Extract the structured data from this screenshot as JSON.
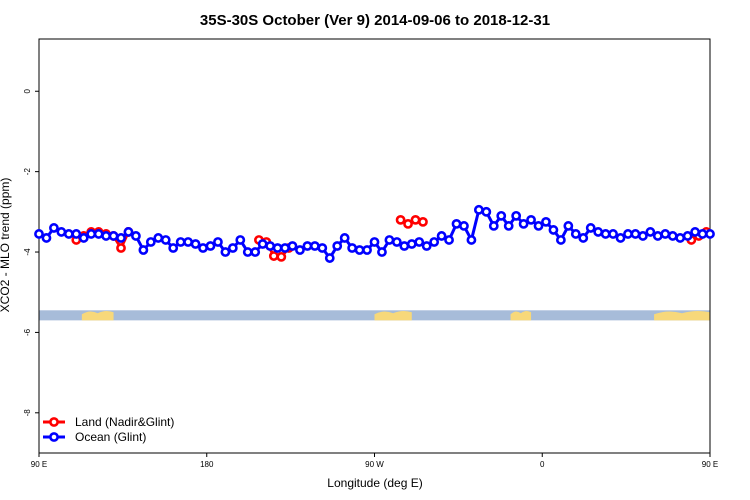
{
  "chart_data": {
    "type": "line",
    "title": "35S-30S October (Ver 9)   2014-09-06 to 2018-12-31",
    "xlabel": "Longitude (deg E)",
    "ylabel": "XCO2 - MLO trend (ppm)",
    "xlim": [
      90,
      450
    ],
    "ylim": [
      -9,
      1.3
    ],
    "x_ticks": [
      {
        "value": 90,
        "label": "90 E"
      },
      {
        "value": 180,
        "label": "180"
      },
      {
        "value": 270,
        "label": "90 W"
      },
      {
        "value": 360,
        "label": "0"
      },
      {
        "value": 450,
        "label": "90 E"
      },
      {
        "value": 540,
        "label": "180"
      }
    ],
    "y_ticks": [
      {
        "value": 0,
        "label": "0"
      },
      {
        "value": -2,
        "label": "-2"
      },
      {
        "value": -4,
        "label": "-4"
      },
      {
        "value": -6,
        "label": "-6"
      },
      {
        "value": -8,
        "label": "-8"
      }
    ],
    "x_axis_scale_note": "",
    "land_strip": {
      "y_top": -5.45,
      "y_bottom": -5.7,
      "ocean_color": "#a7bcd9",
      "land_color": "#f7d87a",
      "land_segments": [
        [
          113,
          130
        ],
        [
          270,
          290
        ],
        [
          343,
          354
        ],
        [
          420,
          450
        ]
      ]
    },
    "series": [
      {
        "name": "Land (Nadir&Glint)",
        "color": "#ff0000",
        "points": [
          [
            110,
            -3.7
          ],
          [
            114,
            -3.6
          ],
          [
            118,
            -3.5
          ],
          [
            122,
            -3.5
          ],
          [
            126,
            -3.55
          ],
          [
            130,
            -3.6
          ],
          [
            134,
            -3.9
          ],
          [
            138,
            -3.5
          ],
          [
            208,
            -3.7
          ],
          [
            212,
            -3.75
          ],
          [
            216,
            -4.1
          ],
          [
            220,
            -4.12
          ],
          [
            224,
            -3.9
          ],
          [
            284,
            -3.2
          ],
          [
            288,
            -3.3
          ],
          [
            292,
            -3.2
          ],
          [
            296,
            -3.25
          ],
          [
            440,
            -3.7
          ],
          [
            444,
            -3.6
          ],
          [
            448,
            -3.5
          ],
          [
            452,
            -3.5
          ],
          [
            456,
            -3.6
          ],
          [
            460,
            -3.9
          ],
          [
            464,
            -3.5
          ]
        ]
      },
      {
        "name": "Ocean (Glint)",
        "color": "#0000ff",
        "points": [
          [
            90,
            -3.55
          ],
          [
            94,
            -3.65
          ],
          [
            98,
            -3.4
          ],
          [
            102,
            -3.5
          ],
          [
            106,
            -3.55
          ],
          [
            110,
            -3.55
          ],
          [
            114,
            -3.65
          ],
          [
            118,
            -3.55
          ],
          [
            122,
            -3.55
          ],
          [
            126,
            -3.6
          ],
          [
            130,
            -3.6
          ],
          [
            134,
            -3.65
          ],
          [
            138,
            -3.5
          ],
          [
            142,
            -3.6
          ],
          [
            146,
            -3.95
          ],
          [
            150,
            -3.75
          ],
          [
            154,
            -3.65
          ],
          [
            158,
            -3.7
          ],
          [
            162,
            -3.9
          ],
          [
            166,
            -3.75
          ],
          [
            170,
            -3.75
          ],
          [
            174,
            -3.8
          ],
          [
            178,
            -3.9
          ],
          [
            182,
            -3.85
          ],
          [
            186,
            -3.75
          ],
          [
            190,
            -4.0
          ],
          [
            194,
            -3.9
          ],
          [
            198,
            -3.7
          ],
          [
            202,
            -4.0
          ],
          [
            206,
            -4.0
          ],
          [
            210,
            -3.8
          ],
          [
            214,
            -3.85
          ],
          [
            218,
            -3.9
          ],
          [
            222,
            -3.9
          ],
          [
            226,
            -3.85
          ],
          [
            230,
            -3.95
          ],
          [
            234,
            -3.85
          ],
          [
            238,
            -3.85
          ],
          [
            242,
            -3.9
          ],
          [
            246,
            -4.15
          ],
          [
            250,
            -3.85
          ],
          [
            254,
            -3.65
          ],
          [
            258,
            -3.9
          ],
          [
            262,
            -3.95
          ],
          [
            266,
            -3.95
          ],
          [
            270,
            -3.75
          ],
          [
            274,
            -4.0
          ],
          [
            278,
            -3.7
          ],
          [
            282,
            -3.75
          ],
          [
            286,
            -3.85
          ],
          [
            290,
            -3.8
          ],
          [
            294,
            -3.75
          ],
          [
            298,
            -3.85
          ],
          [
            302,
            -3.75
          ],
          [
            306,
            -3.6
          ],
          [
            310,
            -3.7
          ],
          [
            314,
            -3.3
          ],
          [
            318,
            -3.35
          ],
          [
            322,
            -3.7
          ],
          [
            326,
            -2.95
          ],
          [
            330,
            -3.0
          ],
          [
            334,
            -3.35
          ],
          [
            338,
            -3.1
          ],
          [
            342,
            -3.35
          ],
          [
            346,
            -3.1
          ],
          [
            350,
            -3.3
          ],
          [
            354,
            -3.2
          ],
          [
            358,
            -3.35
          ],
          [
            362,
            -3.25
          ],
          [
            366,
            -3.45
          ],
          [
            370,
            -3.7
          ],
          [
            374,
            -3.35
          ],
          [
            378,
            -3.55
          ],
          [
            382,
            -3.65
          ],
          [
            386,
            -3.4
          ],
          [
            390,
            -3.5
          ],
          [
            394,
            -3.55
          ],
          [
            398,
            -3.55
          ],
          [
            402,
            -3.65
          ],
          [
            406,
            -3.55
          ],
          [
            410,
            -3.55
          ],
          [
            414,
            -3.6
          ],
          [
            418,
            -3.5
          ],
          [
            422,
            -3.6
          ],
          [
            426,
            -3.55
          ],
          [
            430,
            -3.6
          ],
          [
            434,
            -3.65
          ],
          [
            438,
            -3.6
          ],
          [
            442,
            -3.5
          ],
          [
            446,
            -3.55
          ],
          [
            450,
            -3.55
          ],
          [
            454,
            -3.6
          ],
          [
            458,
            -3.7
          ],
          [
            462,
            -3.45
          ],
          [
            466,
            -3.55
          ],
          [
            470,
            -3.85
          ],
          [
            474,
            -3.75
          ],
          [
            478,
            -3.65
          ],
          [
            482,
            -3.65
          ],
          [
            486,
            -3.7
          ]
        ]
      }
    ],
    "legend": {
      "position": "bottom-left",
      "entries": [
        "Land (Nadir&Glint)",
        "Ocean (Glint)"
      ]
    }
  }
}
